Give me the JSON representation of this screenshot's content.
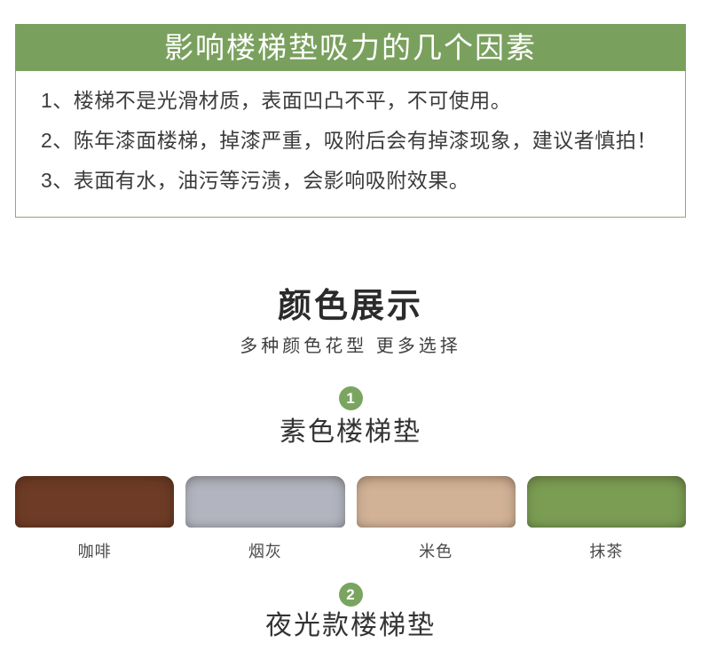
{
  "theme": {
    "accent_green": "#7aa05e",
    "badge_green": "#7aa560",
    "border_green": "#8cab6e"
  },
  "notice": {
    "title": "影响楼梯垫吸力的几个因素",
    "items": [
      "1、楼梯不是光滑材质，表面凹凸不平，不可使用。",
      "2、陈年漆面楼梯，掉漆严重，吸附后会有掉漆现象，建议者慎拍！",
      "3、表面有水，油污等污渍，会影响吸附效果。"
    ]
  },
  "color_section": {
    "heading": "颜色展示",
    "subheading": "多种颜色花型 更多选择",
    "groups": [
      {
        "number": "1",
        "name": "素色楼梯垫",
        "swatches": [
          {
            "label": "咖啡",
            "color": "#6e3c26"
          },
          {
            "label": "烟灰",
            "color": "#b2b5bf"
          },
          {
            "label": "米色",
            "color": "#d1b296"
          },
          {
            "label": "抹茶",
            "color": "#7b9d53"
          }
        ]
      },
      {
        "number": "2",
        "name": "夜光款楼梯垫"
      }
    ]
  }
}
